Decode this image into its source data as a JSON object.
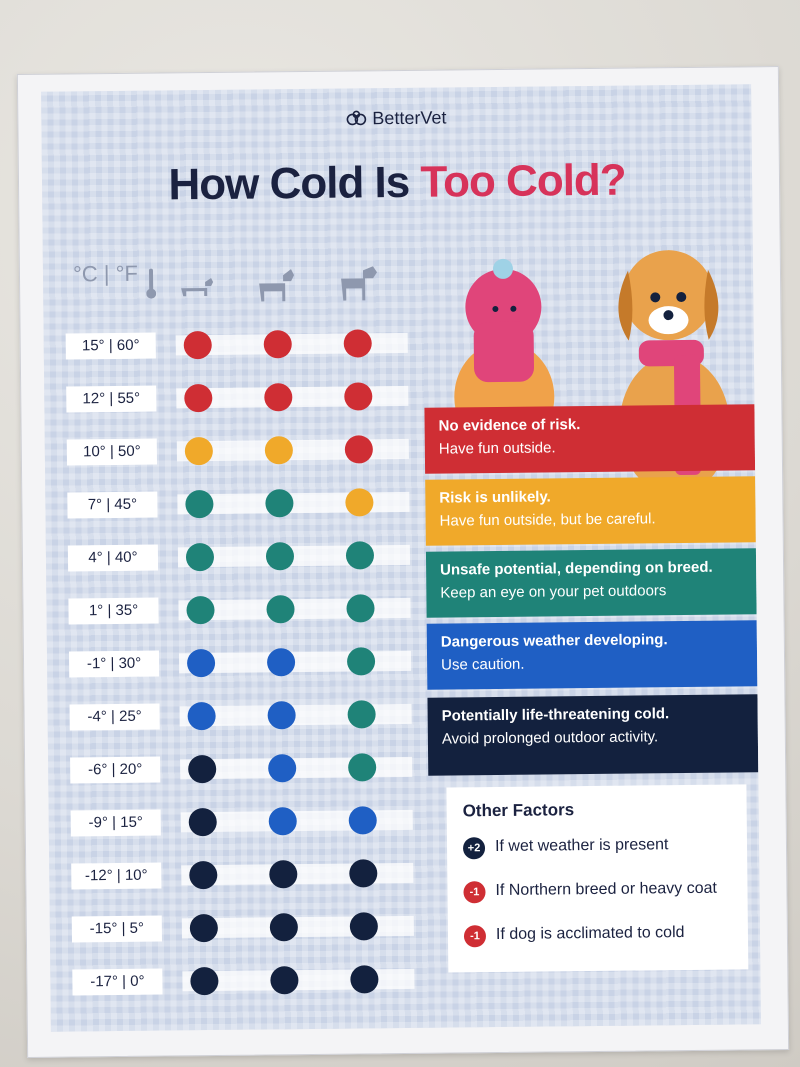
{
  "brand": "BetterVet",
  "title": {
    "prefix": "How Cold Is ",
    "highlight": "Too Cold?"
  },
  "header": {
    "units": "°C | °F",
    "dog_sizes": [
      "small-dog",
      "medium-dog",
      "large-dog"
    ]
  },
  "colors": {
    "safe": "#cf2e34",
    "unlikely": "#f0a92a",
    "unsafe": "#1f8378",
    "dangerous": "#1f5fc4",
    "life": "#13213e"
  },
  "rows": [
    {
      "label": "15° | 60°",
      "levels": [
        "safe",
        "safe",
        "safe"
      ]
    },
    {
      "label": "12° | 55°",
      "levels": [
        "safe",
        "safe",
        "safe"
      ]
    },
    {
      "label": "10° | 50°",
      "levels": [
        "unlikely",
        "unlikely",
        "safe"
      ]
    },
    {
      "label": "7° | 45°",
      "levels": [
        "unsafe",
        "unsafe",
        "unlikely"
      ]
    },
    {
      "label": "4° | 40°",
      "levels": [
        "unsafe",
        "unsafe",
        "unsafe"
      ]
    },
    {
      "label": "1° | 35°",
      "levels": [
        "unsafe",
        "unsafe",
        "unsafe"
      ]
    },
    {
      "label": "-1° | 30°",
      "levels": [
        "dangerous",
        "dangerous",
        "unsafe"
      ]
    },
    {
      "label": "-4° | 25°",
      "levels": [
        "dangerous",
        "dangerous",
        "unsafe"
      ]
    },
    {
      "label": "-6° | 20°",
      "levels": [
        "life",
        "dangerous",
        "unsafe"
      ]
    },
    {
      "label": "-9° | 15°",
      "levels": [
        "life",
        "dangerous",
        "dangerous"
      ]
    },
    {
      "label": "-12° | 10°",
      "levels": [
        "life",
        "life",
        "life"
      ]
    },
    {
      "label": "-15° | 5°",
      "levels": [
        "life",
        "life",
        "life"
      ]
    },
    {
      "label": "-17° | 0°",
      "levels": [
        "life",
        "life",
        "life"
      ]
    }
  ],
  "legend": [
    {
      "key": "safe",
      "line1": "No evidence of risk.",
      "line2": "Have fun outside."
    },
    {
      "key": "unlikely",
      "line1": "Risk is unlikely.",
      "line2": "Have fun outside, but be careful."
    },
    {
      "key": "unsafe",
      "line1": "Unsafe potential, depending on breed.",
      "line2": "Keep an eye on your pet outdoors"
    },
    {
      "key": "dangerous",
      "line1": "Dangerous weather developing.",
      "line2": "Use caution."
    },
    {
      "key": "life",
      "line1": "Potentially  life-threatening cold.",
      "line2": "Avoid prolonged outdoor activity."
    }
  ],
  "other_factors": {
    "heading": "Other Factors",
    "items": [
      {
        "badge": "+2",
        "badge_color": "#13213e",
        "text": "If wet weather is present"
      },
      {
        "badge": "-1",
        "badge_color": "#cf2e34",
        "text": "If Northern breed or heavy coat"
      },
      {
        "badge": "-1",
        "badge_color": "#cf2e34",
        "text": "If dog is acclimated to cold"
      }
    ]
  }
}
